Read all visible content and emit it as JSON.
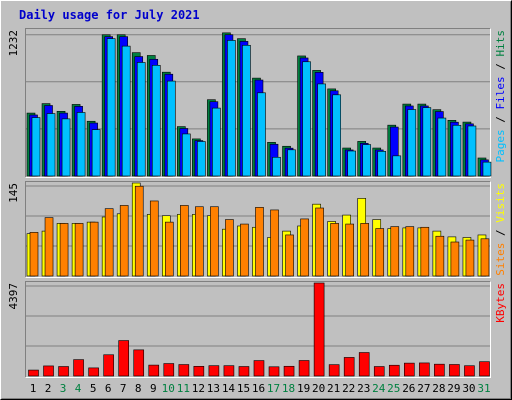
{
  "chart_data": {
    "type": "bar",
    "title": "Daily usage for July 2021",
    "categories": [
      "1",
      "2",
      "3",
      "4",
      "5",
      "6",
      "7",
      "8",
      "9",
      "10",
      "11",
      "12",
      "13",
      "14",
      "15",
      "16",
      "17",
      "18",
      "19",
      "20",
      "21",
      "22",
      "23",
      "24",
      "25",
      "26",
      "27",
      "28",
      "29",
      "30",
      "31"
    ],
    "weekend_days": [
      3,
      4,
      10,
      11,
      17,
      18,
      24,
      25,
      31
    ],
    "colors": {
      "title": "#0000cc",
      "panel_bg": "#c0c0c0",
      "grid": "#808080",
      "hits": "#008040",
      "files": "#0000ff",
      "pages": "#00c0ff",
      "visits": "#ffff00",
      "sites": "#ff8000",
      "kbytes": "#ff0000",
      "weekday_label": "#000000",
      "weekend_label": "#008040"
    },
    "panels": [
      {
        "id": "hits-files-pages",
        "ymax_label": "1232",
        "ymax": 1232,
        "legend": [
          {
            "text": "Pages",
            "color": "#00c0ff"
          },
          {
            "text": " / ",
            "color": "#000000"
          },
          {
            "text": "Files",
            "color": "#0000ff"
          },
          {
            "text": " / ",
            "color": "#000000"
          },
          {
            "text": "Hits",
            "color": "#008040"
          }
        ],
        "series": [
          {
            "name": "Hits",
            "color": "#008040",
            "values": [
              531,
              611,
              546,
              604,
              462,
              1192,
              1192,
              1041,
              1017,
              876,
              417,
              313,
              644,
              1208,
              1159,
              826,
              284,
              251,
              1013,
              891,
              735,
              236,
              292,
              236,
              429,
              607,
              607,
              560,
              470,
              455,
              152
            ]
          },
          {
            "name": "Files",
            "color": "#0000ff",
            "values": [
              515,
              595,
              531,
              588,
              447,
              1176,
              1176,
              1008,
              985,
              859,
              401,
              299,
              627,
              1192,
              1136,
              810,
              268,
              235,
              996,
              875,
              719,
              220,
              276,
              220,
              413,
              591,
              591,
              544,
              454,
              440,
              136
            ]
          },
          {
            "name": "Pages",
            "color": "#00c0ff",
            "values": [
              493,
              527,
              482,
              536,
              391,
              1159,
              1096,
              958,
              934,
              801,
              355,
              291,
              573,
              1144,
              1103,
              702,
              158,
              221,
              964,
              777,
              685,
              211,
              265,
              208,
              170,
              561,
              577,
              489,
              428,
              422,
              117
            ]
          }
        ]
      },
      {
        "id": "visits-sites",
        "ymax_label": "145",
        "ymax": 145,
        "legend": [
          {
            "text": "Sites",
            "color": "#ff8000"
          },
          {
            "text": " / ",
            "color": "#000000"
          },
          {
            "text": "Visits",
            "color": "#ffff00"
          }
        ],
        "series": [
          {
            "name": "Visits",
            "color": "#ffff00",
            "values": [
              66,
              70,
              82,
              82,
              84,
              92,
              97,
              145,
              96,
              94,
              96,
              96,
              94,
              73,
              78,
              76,
              60,
              70,
              78,
              112,
              85,
              95,
              121,
              88,
              74,
              75,
              75,
              70,
              61,
              60,
              64
            ]
          },
          {
            "name": "Sites",
            "color": "#ff8000",
            "values": [
              68,
              91,
              82,
              82,
              84,
              105,
              110,
              140,
              117,
              84,
              110,
              108,
              108,
              88,
              81,
              107,
              103,
              64,
              89,
              106,
              82,
              81,
              82,
              74,
              77,
              77,
              76,
              62,
              53,
              56,
              58
            ]
          }
        ]
      },
      {
        "id": "kbytes",
        "ymax_label": "4397",
        "ymax": 4397,
        "legend": [
          {
            "text": "KBytes",
            "color": "#ff0000"
          }
        ],
        "series": [
          {
            "name": "KBytes",
            "color": "#ff0000",
            "values": [
              281,
              476,
              448,
              775,
              383,
              1004,
              1676,
              1236,
              516,
              589,
              542,
              458,
              489,
              489,
              448,
              730,
              436,
              460,
              733,
              4397,
              537,
              878,
              1110,
              448,
              509,
              609,
              618,
              559,
              544,
              486,
              677
            ]
          }
        ]
      }
    ]
  }
}
